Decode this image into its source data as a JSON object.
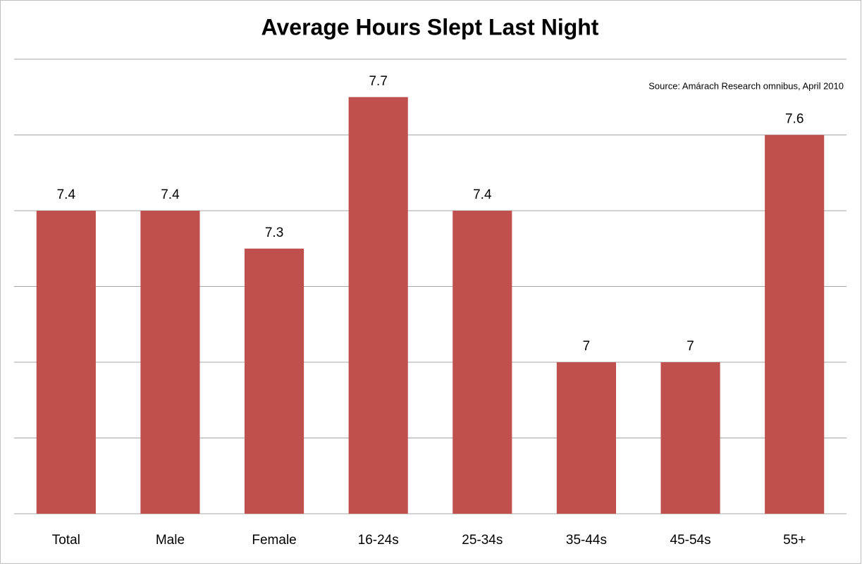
{
  "chart_data": {
    "type": "bar",
    "title": "Average Hours Slept Last Night",
    "source": "Source: Amárach Research omnibus, April 2010",
    "categories": [
      "Total",
      "Male",
      "Female",
      "16-24s",
      "25-34s",
      "35-44s",
      "45-54s",
      "55+"
    ],
    "values": [
      7.4,
      7.4,
      7.3,
      7.7,
      7.4,
      7,
      7,
      7.6
    ],
    "color": "#c0504d",
    "ylim": [
      6.6,
      7.8
    ],
    "yticks": [
      6.6,
      6.8,
      7.0,
      7.2,
      7.4,
      7.6,
      7.8
    ],
    "grid": true
  }
}
